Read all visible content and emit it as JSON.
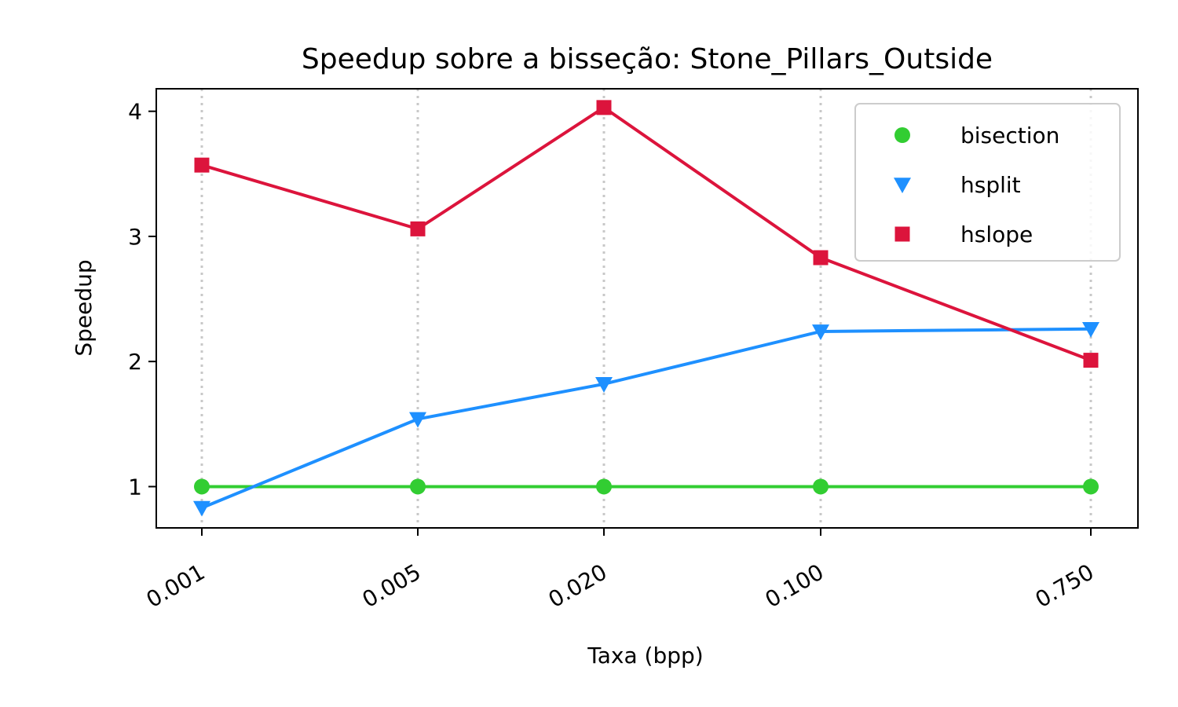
{
  "chart_data": {
    "type": "line",
    "title": "Speedup sobre a bisseção: Stone_Pillars_Outside",
    "xlabel": "Taxa (bpp)",
    "ylabel": "Speedup",
    "categories": [
      "0.001",
      "0.005",
      "0.020",
      "0.100",
      "0.750"
    ],
    "x": [
      0.001,
      0.005,
      0.02,
      0.1,
      0.75
    ],
    "x_scale": "log",
    "ylim": [
      0.67,
      4.18
    ],
    "yticks": [
      1,
      2,
      3,
      4
    ],
    "grid": "x, dotted",
    "legend_position": "top-right",
    "series": [
      {
        "name": "bisection",
        "color": "#32cd32",
        "marker": "circle",
        "values": [
          1.0,
          1.0,
          1.0,
          1.0,
          1.0
        ]
      },
      {
        "name": "hsplit",
        "color": "#1e90ff",
        "marker": "triangle-down",
        "values": [
          0.83,
          1.54,
          1.82,
          2.24,
          2.26
        ]
      },
      {
        "name": "hslope",
        "color": "#dc143c",
        "marker": "square",
        "values": [
          3.57,
          3.06,
          4.03,
          2.83,
          2.01
        ]
      }
    ]
  }
}
